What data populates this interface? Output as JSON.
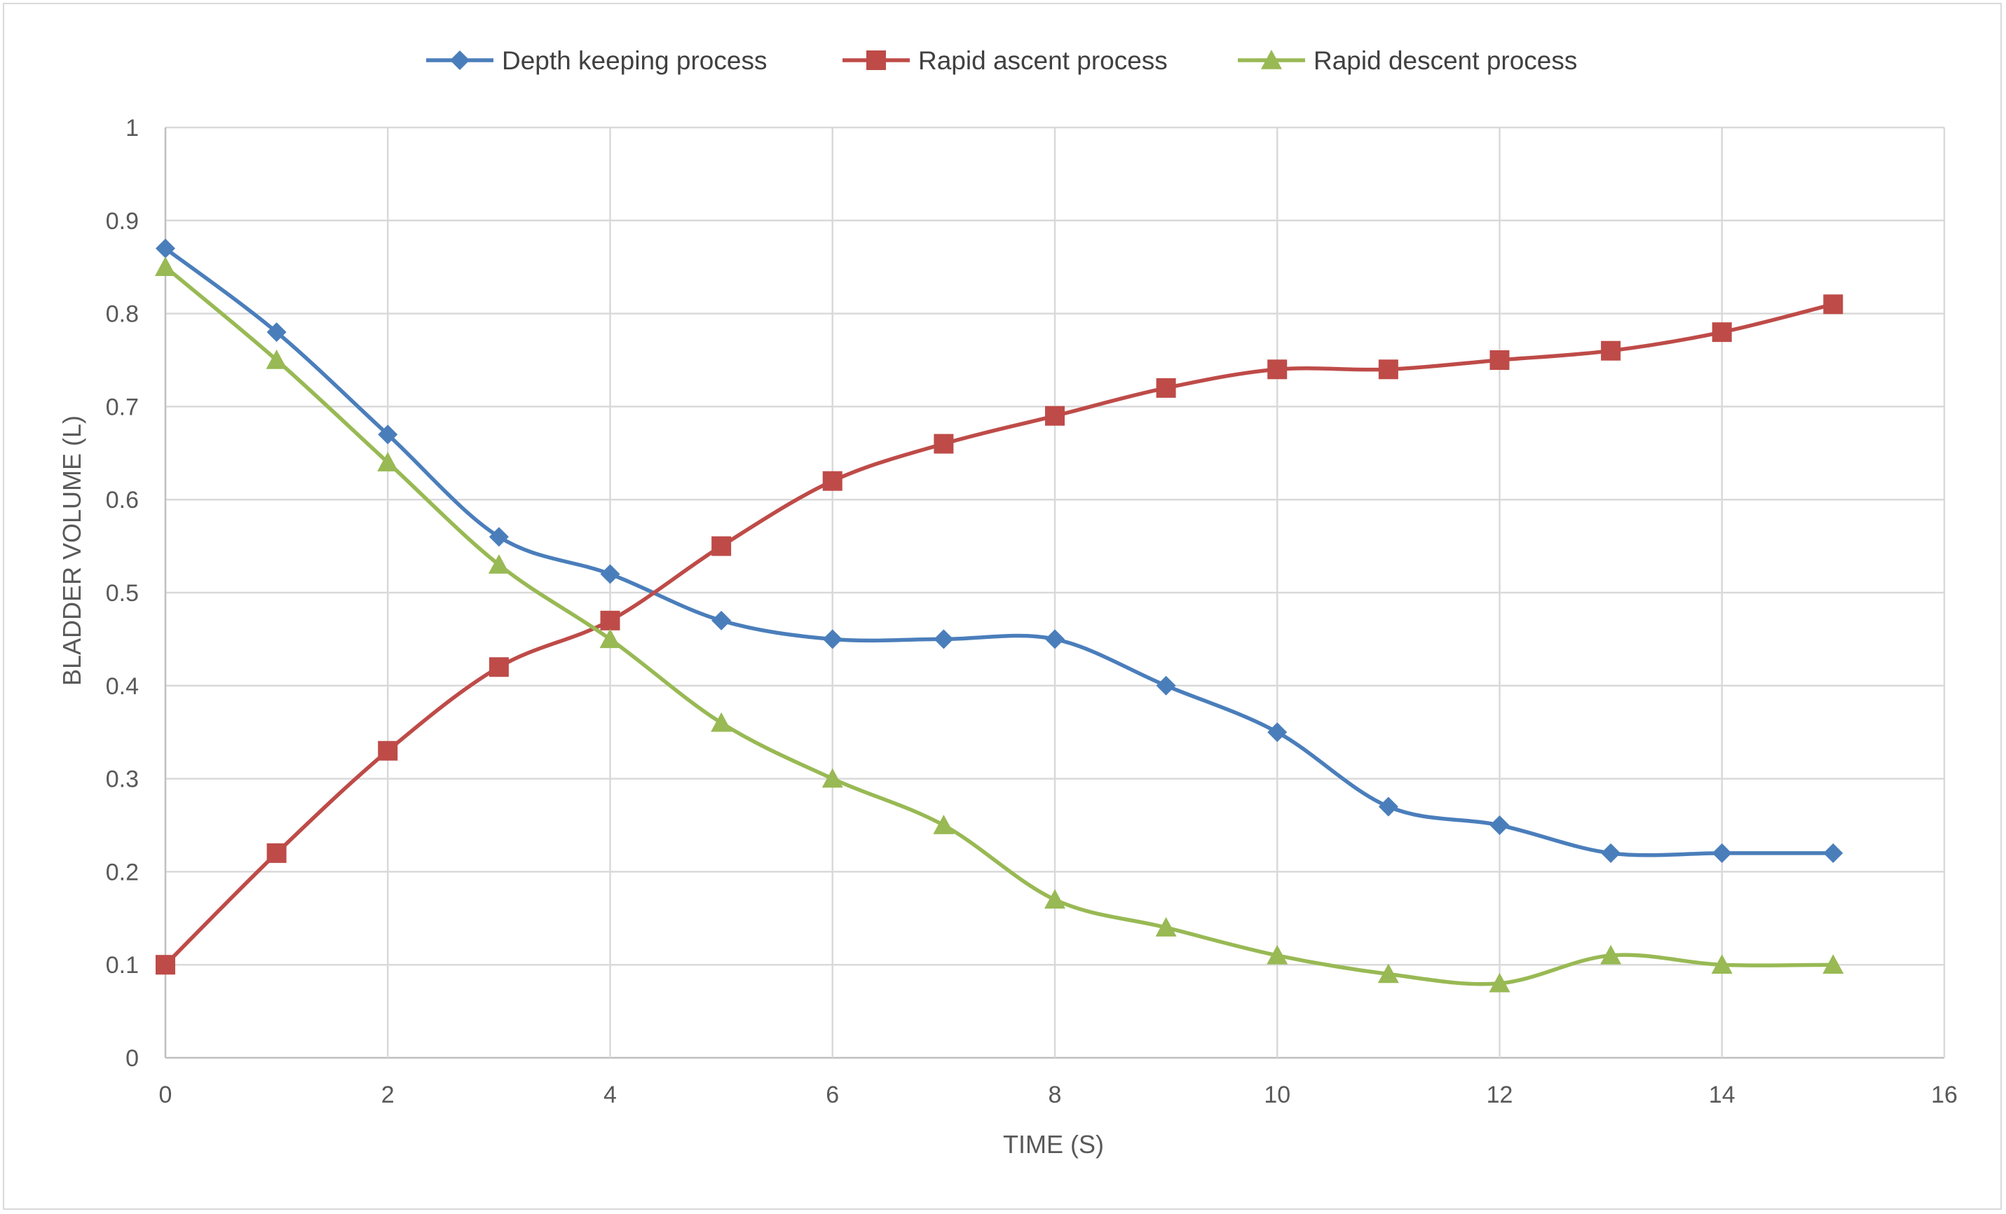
{
  "chart_data": {
    "type": "line",
    "title": "",
    "xlabel": "TIME (S)",
    "ylabel": "BLADDER VOLUME (L)",
    "xlim": [
      0,
      16
    ],
    "ylim": [
      0,
      1
    ],
    "x_ticks": [
      0,
      2,
      4,
      6,
      8,
      10,
      12,
      14,
      16
    ],
    "x_tick_labels": [
      "0",
      "2",
      "4",
      "6",
      "8",
      "10",
      "12",
      "14",
      "16"
    ],
    "y_ticks": [
      0,
      0.1,
      0.2,
      0.3,
      0.4,
      0.5,
      0.6,
      0.7,
      0.8,
      0.9,
      1
    ],
    "y_tick_labels": [
      "0",
      "0.1",
      "0.2",
      "0.3",
      "0.4",
      "0.5",
      "0.6",
      "0.7",
      "0.8",
      "0.9",
      "1"
    ],
    "grid": true,
    "smooth": true,
    "legend_position": "top-center",
    "x": [
      0,
      1,
      2,
      3,
      4,
      5,
      6,
      7,
      8,
      9,
      10,
      11,
      12,
      13,
      14,
      15
    ],
    "series": [
      {
        "name": "Depth keeping process",
        "color": "#4a7ebb",
        "marker": "diamond",
        "values": [
          0.87,
          0.78,
          0.67,
          0.56,
          0.52,
          0.47,
          0.45,
          0.45,
          0.45,
          0.4,
          0.35,
          0.27,
          0.25,
          0.22,
          0.22,
          0.22
        ]
      },
      {
        "name": "Rapid ascent process",
        "color": "#be4b48",
        "marker": "square",
        "values": [
          0.1,
          0.22,
          0.33,
          0.42,
          0.47,
          0.55,
          0.62,
          0.66,
          0.69,
          0.72,
          0.74,
          0.74,
          0.75,
          0.76,
          0.78,
          0.81
        ]
      },
      {
        "name": "Rapid descent process",
        "color": "#98b954",
        "marker": "triangle",
        "values": [
          0.85,
          0.75,
          0.64,
          0.53,
          0.45,
          0.36,
          0.3,
          0.25,
          0.17,
          0.14,
          0.11,
          0.09,
          0.08,
          0.11,
          0.1,
          0.1
        ]
      }
    ]
  }
}
